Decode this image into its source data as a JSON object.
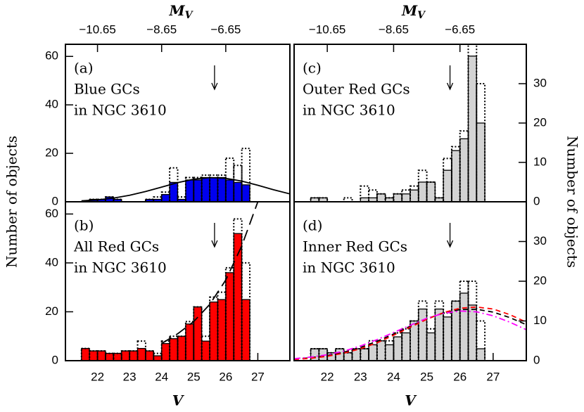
{
  "chart_data": [
    {
      "type": "histogram",
      "label": "(a)",
      "text": [
        "Blue GCs",
        "in NGC 3610"
      ],
      "bins": [
        21.5,
        21.75,
        22,
        22.25,
        22.5,
        22.75,
        23,
        23.25,
        23.5,
        23.75,
        24,
        24.25,
        24.5,
        24.75,
        25,
        25.25,
        25.5,
        25.75,
        26,
        26.25,
        26.5,
        26.75
      ],
      "values": [
        0,
        1,
        1,
        2,
        1,
        0,
        0,
        0,
        1,
        1,
        3,
        8,
        1,
        9,
        9,
        10,
        10,
        10,
        9,
        8,
        7
      ],
      "outline_values": [
        0,
        1,
        1,
        2,
        1,
        0,
        0,
        0,
        1,
        2,
        4,
        14,
        2,
        10,
        10,
        11,
        11,
        11,
        18,
        15,
        22
      ],
      "color": "#0000ee",
      "xlim": [
        21,
        28
      ],
      "ylim": [
        0,
        65
      ],
      "yticks": [
        0,
        20,
        40,
        60
      ],
      "yaxis": "left",
      "top_xlim": [
        -11.65,
        -4.65
      ],
      "top_xticks": [
        {
          "value": -10.65,
          "label": "−10.65"
        },
        {
          "value": -8.65,
          "label": "−8.65"
        },
        {
          "value": -6.65,
          "label": "−6.65"
        }
      ],
      "top_label": {
        "text": "M",
        "sub": "V"
      },
      "ylabel": "Number of objects",
      "arrow_x": 25.65,
      "curves": [
        {
          "color": "#000000",
          "style": "solid",
          "x": [
            21.5,
            22,
            22.5,
            23,
            23.5,
            24,
            24.5,
            25,
            25.5,
            26,
            26.5,
            27,
            27.5,
            28
          ],
          "y": [
            0.38,
            0.8,
            1.53,
            2.67,
            4.23,
            6.07,
            7.9,
            9.32,
            9.98,
            9.69,
            8.54,
            6.82,
            4.94,
            3.25
          ]
        }
      ]
    },
    {
      "type": "histogram",
      "label": "(b)",
      "text": [
        "All Red GCs",
        "in NGC 3610"
      ],
      "bins": [
        21.5,
        21.75,
        22,
        22.25,
        22.5,
        22.75,
        23,
        23.25,
        23.5,
        23.75,
        24,
        24.25,
        24.5,
        24.75,
        25,
        25.25,
        25.5,
        25.75,
        26,
        26.25,
        26.5,
        26.75
      ],
      "values": [
        5,
        4,
        4,
        3,
        3,
        4,
        4,
        5,
        4,
        2,
        7,
        9,
        10,
        15,
        22,
        8,
        24,
        25,
        36,
        52,
        25
      ],
      "outline_values": [
        5,
        4,
        4,
        3,
        3,
        4,
        4,
        8,
        4,
        3,
        8,
        10,
        10,
        16,
        22,
        10,
        26,
        28,
        38,
        58,
        40
      ],
      "color": "#ff0000",
      "xlim": [
        21,
        28
      ],
      "ylim": [
        0,
        65
      ],
      "yticks": [
        0,
        20,
        40,
        60
      ],
      "yaxis": "left",
      "xticks": [
        22,
        23,
        24,
        25,
        26,
        27
      ],
      "xlabel": "V",
      "arrow_x": 25.65,
      "curves": [
        {
          "color": "#000000",
          "style": "longdash",
          "x": [
            24,
            24.5,
            25,
            25.5,
            26,
            26.5,
            27
          ],
          "y": [
            7,
            11,
            16,
            23,
            33,
            47,
            65
          ]
        }
      ]
    },
    {
      "type": "histogram",
      "label": "(c)",
      "text": [
        "Outer Red GCs",
        "in NGC 3610"
      ],
      "bins": [
        21.5,
        21.75,
        22,
        22.25,
        22.5,
        22.75,
        23,
        23.25,
        23.5,
        23.75,
        24,
        24.25,
        24.5,
        24.75,
        25,
        25.25,
        25.5,
        25.75,
        26,
        26.25,
        26.5,
        26.75
      ],
      "values": [
        1,
        1,
        0,
        0,
        0,
        0,
        1,
        1,
        2,
        1,
        2,
        2,
        3,
        5,
        5,
        1,
        8,
        13,
        16,
        37,
        20
      ],
      "outline_values": [
        1,
        1,
        0,
        0,
        1,
        0,
        4,
        3,
        2,
        1,
        2,
        3,
        4,
        8,
        5,
        1,
        11,
        14,
        18,
        40,
        30
      ],
      "color": "#d3d3d3",
      "xlim": [
        21,
        28
      ],
      "ylim": [
        0,
        40
      ],
      "yticks": [
        0,
        10,
        20,
        30
      ],
      "yaxis": "right",
      "top_xlim": [
        -11.65,
        -4.65
      ],
      "top_xticks": [
        {
          "value": -10.65,
          "label": "−10.65"
        },
        {
          "value": -8.65,
          "label": "−8.65"
        },
        {
          "value": -6.65,
          "label": "−6.65"
        }
      ],
      "top_label": {
        "text": "M",
        "sub": "V"
      },
      "ylabel": "Number of objects",
      "arrow_x": 25.7,
      "curves": []
    },
    {
      "type": "histogram",
      "label": "(d)",
      "text": [
        "Inner Red GCs",
        "in NGC 3610"
      ],
      "bins": [
        21.5,
        21.75,
        22,
        22.25,
        22.5,
        22.75,
        23,
        23.25,
        23.5,
        23.75,
        24,
        24.25,
        24.5,
        24.75,
        25,
        25.25,
        25.5,
        25.75,
        26,
        26.25,
        26.5,
        26.75
      ],
      "values": [
        3,
        3,
        2,
        3,
        2,
        3,
        3,
        4,
        5,
        4,
        6,
        7,
        10,
        13,
        7,
        13,
        11,
        15,
        17,
        14,
        3
      ],
      "outline_values": [
        3,
        3,
        2,
        3,
        2,
        3,
        3,
        5,
        5,
        5,
        7,
        8,
        10,
        15,
        8,
        15,
        12,
        15,
        20,
        20,
        10
      ],
      "color": "#d3d3d3",
      "xlim": [
        21,
        28
      ],
      "ylim": [
        0,
        40
      ],
      "yticks": [
        0,
        10,
        20,
        30
      ],
      "yaxis": "right",
      "xticks": [
        22,
        23,
        24,
        25,
        26,
        27
      ],
      "xlabel": "V",
      "arrow_x": 25.7,
      "curves": [
        {
          "color": "#000000",
          "style": "dashed",
          "x": [
            21,
            21.5,
            22,
            22.5,
            23,
            23.5,
            24,
            24.5,
            25,
            25.5,
            26,
            26.5,
            27,
            27.5,
            28
          ],
          "y": [
            0.39,
            0.73,
            1.29,
            2.14,
            3.33,
            4.88,
            6.71,
            8.67,
            10.53,
            12,
            12.86,
            12.94,
            12.23,
            10.86,
            9.06
          ]
        },
        {
          "color": "#ff0000",
          "style": "dashed",
          "x": [
            21,
            21.5,
            22,
            22.5,
            23,
            23.5,
            24,
            24.5,
            25,
            25.5,
            26,
            26.5,
            27,
            27.5,
            28
          ],
          "y": [
            0.3,
            0.6,
            1.1,
            1.9,
            3,
            4.5,
            6.4,
            8.4,
            10.4,
            12.1,
            13.2,
            13.5,
            13,
            11.6,
            9.7
          ]
        },
        {
          "color": "#ff00ff",
          "style": "dashdot",
          "x": [
            21,
            21.5,
            22,
            22.5,
            23,
            23.5,
            24,
            24.5,
            25,
            25.5,
            26,
            26.5,
            27,
            27.5,
            28
          ],
          "y": [
            0.5,
            0.9,
            1.5,
            2.4,
            3.7,
            5.3,
            7.1,
            8.9,
            10.7,
            11.9,
            12.5,
            12.3,
            11.3,
            9.7,
            7.8
          ]
        }
      ]
    }
  ]
}
